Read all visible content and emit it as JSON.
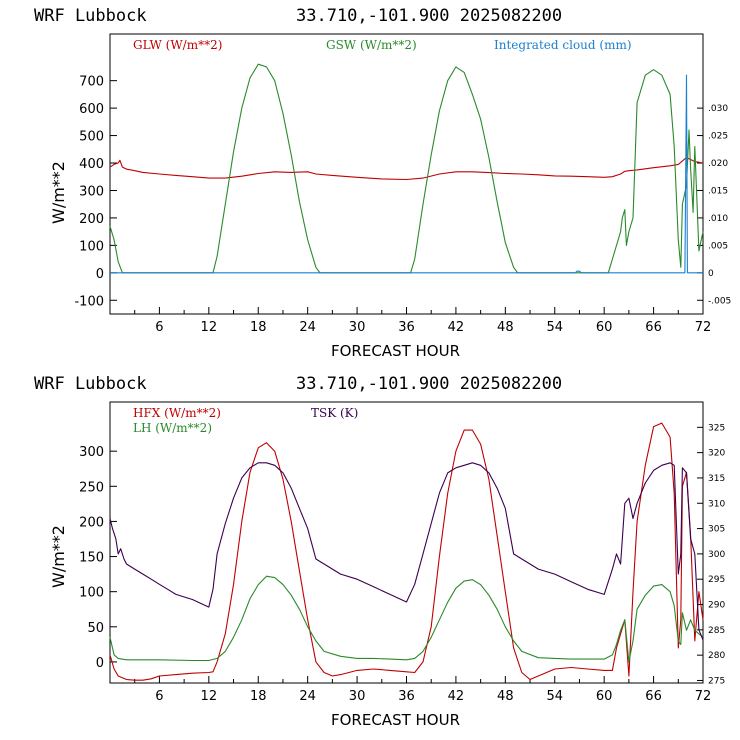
{
  "charts": [
    {
      "title_left": "WRF  Lubbock",
      "title_right": "33.710,-101.900  2025082200",
      "xlabel": "FORECAST HOUR",
      "ylabel": "W/m**2",
      "legend": [
        {
          "label": "GLW (W/m**2)",
          "color": "#c00000"
        },
        {
          "label": "GSW (W/m**2)",
          "color": "#2a8a2a"
        },
        {
          "label": "Integrated cloud (mm)",
          "color": "#1a7fd0"
        }
      ],
      "x_ticks": [
        "6",
        "12",
        "18",
        "24",
        "30",
        "36",
        "42",
        "48",
        "54",
        "60",
        "66",
        "72"
      ],
      "y_ticks": [
        "-100",
        "0",
        "100",
        "200",
        "300",
        "400",
        "500",
        "600",
        "700"
      ],
      "y2_ticks": [
        "-.005",
        "0",
        ".005",
        ".010",
        ".015",
        ".020",
        ".025",
        ".030"
      ]
    },
    {
      "title_left": "WRF  Lubbock",
      "title_right": "33.710,-101.900  2025082200",
      "xlabel": "FORECAST HOUR",
      "ylabel": "W/m**2",
      "legend": [
        {
          "label": "HFX (W/m**2)",
          "color": "#c00000"
        },
        {
          "label": "LH  (W/m**2)",
          "color": "#2a8a2a"
        },
        {
          "label": "TSK (K)",
          "color": "#3a0050"
        }
      ],
      "x_ticks": [
        "6",
        "12",
        "18",
        "24",
        "30",
        "36",
        "42",
        "48",
        "54",
        "60",
        "66",
        "72"
      ],
      "y_ticks": [
        "0",
        "50",
        "100",
        "150",
        "200",
        "250",
        "300"
      ],
      "y2_ticks": [
        "275",
        "280",
        "285",
        "290",
        "295",
        "300",
        "305",
        "310",
        "315",
        "320",
        "325"
      ]
    }
  ],
  "chart_data": [
    {
      "type": "line",
      "title": "WRF  Lubbock  33.710,-101.900  2025082200",
      "xlabel": "FORECAST HOUR",
      "ylabel": "W/m**2",
      "xlim": [
        0,
        72
      ],
      "ylim": [
        -150,
        870
      ],
      "y2lim": [
        -0.0075,
        0.0435
      ],
      "series": [
        {
          "name": "GLW (W/m**2)",
          "axis": "left",
          "color": "#c00000",
          "x": [
            0,
            0.5,
            1,
            1.2,
            1.5,
            2,
            3,
            4,
            6,
            8,
            10,
            12,
            14,
            16,
            18,
            20,
            22,
            23,
            24,
            25,
            27,
            30,
            33,
            36,
            38,
            40,
            42,
            44,
            46,
            48,
            50,
            52,
            54,
            56,
            58,
            60,
            61,
            62,
            62.5,
            63,
            64,
            66,
            68,
            69,
            70,
            71,
            72
          ],
          "y": [
            385,
            395,
            400,
            410,
            385,
            378,
            372,
            366,
            360,
            355,
            350,
            345,
            345,
            352,
            362,
            368,
            366,
            367,
            368,
            360,
            355,
            348,
            342,
            340,
            345,
            360,
            368,
            368,
            365,
            362,
            360,
            357,
            353,
            352,
            350,
            348,
            350,
            360,
            370,
            372,
            375,
            383,
            390,
            395,
            420,
            405,
            400
          ]
        },
        {
          "name": "GSW (W/m**2)",
          "axis": "left",
          "color": "#2a8a2a",
          "x": [
            0,
            0.5,
            1,
            1.5,
            12.5,
            13,
            14,
            15,
            16,
            17,
            18,
            19,
            20,
            21,
            22,
            23,
            24,
            25,
            25.5,
            36.5,
            37,
            38,
            39,
            40,
            41,
            42,
            43,
            44,
            45,
            46,
            47,
            48,
            49,
            49.5,
            60.5,
            61,
            61.5,
            62,
            62.2,
            62.5,
            62.7,
            63,
            63.5,
            64,
            65,
            66,
            67,
            68,
            68.5,
            69,
            69.3,
            69.5,
            70,
            70.3,
            70.5,
            70.8,
            71,
            71.5,
            72
          ],
          "y": [
            170,
            120,
            40,
            0,
            0,
            60,
            250,
            440,
            600,
            710,
            760,
            750,
            700,
            580,
            430,
            260,
            120,
            20,
            0,
            0,
            50,
            250,
            430,
            590,
            700,
            750,
            730,
            650,
            560,
            420,
            260,
            110,
            20,
            0,
            0,
            50,
            100,
            150,
            200,
            230,
            100,
            150,
            200,
            620,
            720,
            740,
            720,
            650,
            460,
            120,
            20,
            250,
            320,
            520,
            380,
            220,
            460,
            80,
            150
          ]
        },
        {
          "name": "Integrated cloud (mm)",
          "axis": "right",
          "color": "#1a7fd0",
          "x": [
            0,
            56.5,
            56.7,
            57,
            57.2,
            69.8,
            70,
            70.1,
            70.3,
            70.5,
            72
          ],
          "y": [
            0,
            0,
            0.0003,
            0.0003,
            0,
            0,
            0.036,
            0.0,
            0.0,
            0.0,
            0
          ]
        }
      ]
    },
    {
      "type": "line",
      "title": "WRF  Lubbock  33.710,-101.900  2025082200",
      "xlabel": "FORECAST HOUR",
      "ylabel": "W/m**2",
      "xlim": [
        0,
        72
      ],
      "ylim": [
        -30,
        370
      ],
      "y2lim": [
        274.5,
        330
      ],
      "series": [
        {
          "name": "HFX (W/m**2)",
          "axis": "left",
          "color": "#c00000",
          "x": [
            0,
            0.5,
            1,
            2,
            3,
            4,
            5,
            6,
            8,
            10,
            12,
            12.5,
            13,
            14,
            15,
            16,
            17,
            18,
            19,
            20,
            21,
            22,
            23,
            24,
            25,
            26,
            27,
            28,
            30,
            32,
            34,
            36,
            37,
            38,
            39,
            40,
            41,
            42,
            43,
            44,
            45,
            46,
            47,
            48,
            49,
            50,
            51,
            52,
            54,
            56,
            58,
            60,
            61,
            61.5,
            62,
            62.5,
            63,
            63.5,
            64,
            65,
            66,
            67,
            68,
            68.5,
            69,
            69.3,
            69.5,
            70,
            70.5,
            71,
            71.5,
            72
          ],
          "y": [
            10,
            -10,
            -20,
            -25,
            -26,
            -26,
            -24,
            -20,
            -18,
            -16,
            -15,
            -14,
            0,
            40,
            110,
            200,
            270,
            305,
            312,
            300,
            260,
            200,
            130,
            60,
            0,
            -15,
            -20,
            -18,
            -12,
            -10,
            -12,
            -14,
            -15,
            0,
            50,
            150,
            240,
            300,
            330,
            330,
            310,
            260,
            180,
            100,
            20,
            -15,
            -25,
            -20,
            -10,
            -8,
            -10,
            -12,
            -12,
            20,
            40,
            60,
            -20,
            100,
            200,
            280,
            335,
            340,
            320,
            240,
            20,
            60,
            250,
            270,
            180,
            30,
            100,
            60
          ]
        },
        {
          "name": "LH  (W/m**2)",
          "axis": "left",
          "color": "#2a8a2a",
          "x": [
            0,
            0.5,
            1,
            2,
            6,
            10,
            12,
            13,
            14,
            15,
            16,
            17,
            18,
            19,
            20,
            21,
            22,
            23,
            24,
            25,
            26,
            28,
            30,
            32,
            34,
            36,
            37,
            38,
            39,
            40,
            41,
            42,
            43,
            44,
            45,
            46,
            47,
            48,
            49,
            50,
            52,
            54,
            56,
            58,
            60,
            61,
            61.5,
            62,
            62.5,
            63,
            63.5,
            64,
            65,
            66,
            67,
            68,
            68.5,
            69,
            69.3,
            69.5,
            70,
            70.5,
            71,
            71.5,
            72
          ],
          "y": [
            35,
            10,
            5,
            3,
            3,
            2,
            2,
            5,
            15,
            35,
            60,
            90,
            110,
            122,
            120,
            110,
            95,
            75,
            50,
            30,
            15,
            8,
            5,
            5,
            4,
            3,
            5,
            15,
            35,
            60,
            85,
            105,
            115,
            117,
            110,
            95,
            75,
            50,
            30,
            15,
            6,
            5,
            4,
            4,
            4,
            10,
            25,
            45,
            60,
            0,
            30,
            75,
            95,
            108,
            110,
            100,
            80,
            30,
            25,
            70,
            45,
            60,
            45,
            40,
            35
          ]
        },
        {
          "name": "TSK (K)",
          "axis": "right",
          "color": "#3a0050",
          "x": [
            0,
            0.3,
            0.7,
            1,
            1.3,
            1.7,
            2,
            3,
            4,
            5,
            6,
            7,
            8,
            10,
            12,
            12.5,
            13,
            14,
            15,
            16,
            17,
            18,
            19,
            20,
            21,
            22,
            23,
            24,
            25,
            26,
            27,
            28,
            30,
            32,
            34,
            36,
            37,
            38,
            39,
            40,
            41,
            42,
            43,
            44,
            45,
            46,
            47,
            48,
            49,
            50,
            51,
            52,
            54,
            56,
            58,
            60,
            61,
            61.5,
            62,
            62.5,
            63,
            63.5,
            64,
            65,
            66,
            67,
            68,
            68.5,
            69,
            69.3,
            69.5,
            70,
            70.5,
            71,
            71.5,
            72
          ],
          "y": [
            307,
            305,
            303,
            300,
            301,
            299,
            298,
            297,
            296,
            295,
            294,
            293,
            292,
            291,
            289.5,
            293,
            300,
            306,
            311,
            315,
            317,
            318,
            318,
            317.5,
            316,
            313,
            309,
            305,
            299,
            298,
            297,
            296,
            295,
            293.5,
            292,
            290.5,
            294,
            300,
            306,
            312,
            316,
            317,
            317.5,
            318,
            317.5,
            316,
            313,
            309,
            300,
            299,
            298,
            297,
            296,
            294.5,
            293,
            292,
            297,
            300,
            298,
            310,
            311,
            307,
            310,
            314,
            316.5,
            317.5,
            318,
            317.5,
            296,
            300,
            317,
            316,
            303,
            300,
            285,
            283
          ]
        }
      ]
    }
  ]
}
